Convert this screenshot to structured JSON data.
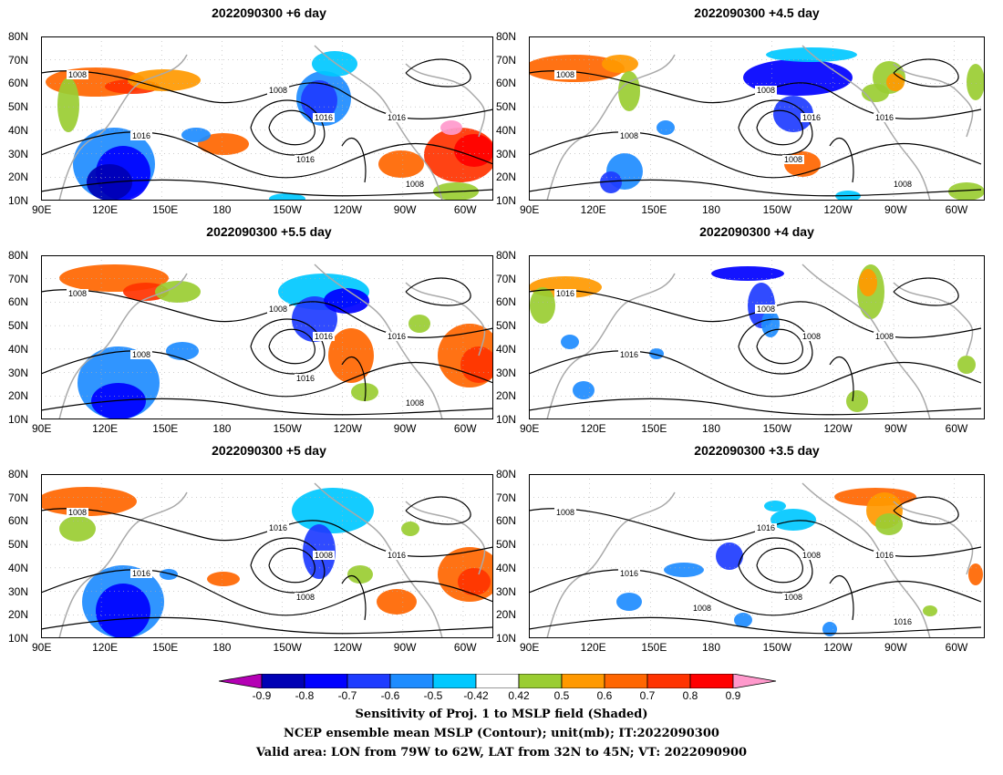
{
  "panels": [
    {
      "title": "2022090300 +6 day",
      "contours": [
        "1008",
        "1008",
        "1016",
        "1016",
        "1016",
        "1016",
        "1008"
      ]
    },
    {
      "title": "2022090300 +4.5 day",
      "contours": [
        "1008",
        "1008",
        "1016",
        "1008",
        "1016",
        "1008",
        "1008"
      ]
    },
    {
      "title": "2022090300 +5.5 day",
      "contours": [
        "1008",
        "1008",
        "1016",
        "1008",
        "1016",
        "1016",
        "1008"
      ]
    },
    {
      "title": "2022090300 +4 day",
      "contours": [
        "1016",
        "1008",
        "1008",
        "1016",
        "1008"
      ]
    },
    {
      "title": "2022090300 +5 day",
      "contours": [
        "1008",
        "1016",
        "1008",
        "1016",
        "1016",
        "1008"
      ]
    },
    {
      "title": "2022090300 +3.5 day",
      "contours": [
        "1008",
        "1016",
        "1008",
        "1016",
        "1016",
        "1008",
        "1016",
        "1008"
      ]
    }
  ],
  "lat_labels": [
    "80N",
    "70N",
    "60N",
    "50N",
    "40N",
    "30N",
    "20N",
    "10N"
  ],
  "lon_labels": [
    "90E",
    "120E",
    "150E",
    "180",
    "150W",
    "120W",
    "90W",
    "60W"
  ],
  "colorbar": {
    "colors": [
      "#b400b4",
      "#0000b4",
      "#0000ff",
      "#1e3cff",
      "#1e8cff",
      "#00c8ff",
      "#ffffff",
      "#9acd32",
      "#ff9900",
      "#ff6600",
      "#ff3300",
      "#ff0000",
      "#ff99cc"
    ],
    "labels": [
      "-0.9",
      "-0.8",
      "-0.7",
      "-0.6",
      "-0.5",
      "-0.42",
      "0.42",
      "0.5",
      "0.6",
      "0.7",
      "0.8",
      "0.9"
    ]
  },
  "captions": [
    "Sensitivity of Proj. 1 to MSLP field (Shaded)",
    "NCEP ensemble mean MSLP (Contour); unit(mb); IT:2022090300",
    "Valid area: LON from 79W to 62W, LAT from 32N to 45N; VT: 2022090900"
  ]
}
